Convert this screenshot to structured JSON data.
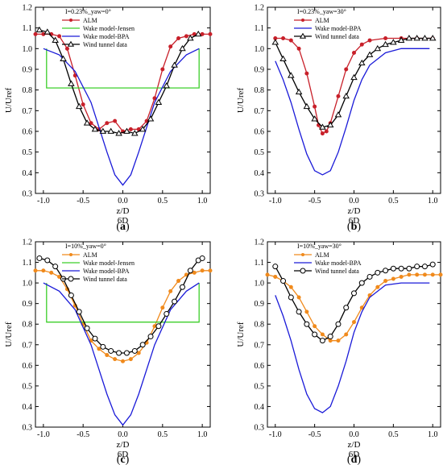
{
  "chart_data": [
    {
      "type": "line",
      "panel_label": {
        "open": "(",
        "letter": "a",
        "close": ")"
      },
      "annotation": "I=0.23%_yaw=0°",
      "xlabel": "z/D",
      "xlabel2": "6D",
      "ylabel": "U/Uref",
      "xlim": [
        -1.1,
        1.1
      ],
      "ylim": [
        0.3,
        1.2
      ],
      "xticks": [
        "-1.0",
        "-0.5",
        "0.0",
        "0.5",
        "1.0"
      ],
      "yticks": [
        "0.3",
        "0.4",
        "0.5",
        "0.6",
        "0.7",
        "0.8",
        "0.9",
        "1.0",
        "1.1",
        "1.2"
      ],
      "legend_position": "top-left",
      "series": [
        {
          "name": "ALM",
          "color": "#c8202a",
          "marker": "dot",
          "x": [
            -1.1,
            -1.0,
            -0.9,
            -0.8,
            -0.7,
            -0.6,
            -0.5,
            -0.4,
            -0.3,
            -0.2,
            -0.1,
            0.0,
            0.1,
            0.2,
            0.3,
            0.4,
            0.5,
            0.6,
            0.7,
            0.8,
            0.9,
            1.0,
            1.1
          ],
          "y": [
            1.07,
            1.07,
            1.07,
            1.06,
            1.0,
            0.87,
            0.73,
            0.64,
            0.61,
            0.64,
            0.65,
            0.6,
            0.61,
            0.61,
            0.65,
            0.76,
            0.9,
            1.01,
            1.05,
            1.06,
            1.07,
            1.07,
            1.07
          ]
        },
        {
          "name": "Wake model-Jensen",
          "color": "#3ccf2a",
          "marker": "none",
          "x": [
            -0.96,
            -0.96,
            0.96,
            0.96
          ],
          "y": [
            1.0,
            0.81,
            0.81,
            1.0
          ]
        },
        {
          "name": "Wake model-BPA",
          "color": "#1a1ad8",
          "marker": "none",
          "x": [
            -1.0,
            -0.8,
            -0.6,
            -0.4,
            -0.2,
            -0.1,
            0.0,
            0.1,
            0.2,
            0.4,
            0.6,
            0.8,
            0.96
          ],
          "y": [
            1.0,
            0.97,
            0.89,
            0.74,
            0.5,
            0.39,
            0.34,
            0.39,
            0.5,
            0.74,
            0.89,
            0.97,
            1.0
          ]
        },
        {
          "name": "Wind tunnel data",
          "color": "#000000",
          "marker": "triangle",
          "x": [
            -1.05,
            -0.95,
            -0.85,
            -0.75,
            -0.65,
            -0.55,
            -0.45,
            -0.35,
            -0.25,
            -0.15,
            -0.05,
            0.05,
            0.15,
            0.25,
            0.35,
            0.45,
            0.55,
            0.65,
            0.75,
            0.85,
            0.95
          ],
          "y": [
            1.09,
            1.08,
            1.04,
            0.95,
            0.83,
            0.72,
            0.64,
            0.61,
            0.6,
            0.6,
            0.59,
            0.6,
            0.59,
            0.61,
            0.66,
            0.74,
            0.82,
            0.92,
            1.0,
            1.05,
            1.07
          ]
        }
      ]
    },
    {
      "type": "line",
      "panel_label": {
        "open": "(",
        "letter": "b",
        "close": ")"
      },
      "annotation": "I=0.23%_yaw=30°",
      "xlabel": "z/D",
      "xlabel2": "6D",
      "ylabel": "U/Uref",
      "xlim": [
        -1.1,
        1.1
      ],
      "ylim": [
        0.3,
        1.2
      ],
      "xticks": [
        "-1.0",
        "-0.5",
        "0.0",
        "0.5",
        "1.0"
      ],
      "yticks": [
        "0.3",
        "0.4",
        "0.5",
        "0.6",
        "0.7",
        "0.8",
        "0.9",
        "1.0",
        "1.1",
        "1.2"
      ],
      "legend_position": "top-left",
      "series": [
        {
          "name": "ALM",
          "color": "#c8202a",
          "marker": "dot",
          "x": [
            -1.0,
            -0.9,
            -0.8,
            -0.7,
            -0.6,
            -0.5,
            -0.45,
            -0.4,
            -0.35,
            -0.3,
            -0.2,
            -0.1,
            0.0,
            0.1,
            0.2,
            0.4,
            0.6,
            0.8,
            1.0
          ],
          "y": [
            1.05,
            1.05,
            1.04,
            1.0,
            0.88,
            0.72,
            0.63,
            0.59,
            0.6,
            0.64,
            0.77,
            0.9,
            0.98,
            1.02,
            1.04,
            1.05,
            1.05,
            1.05,
            1.05
          ]
        },
        {
          "name": "Wake model-BPA",
          "color": "#1a1ad8",
          "marker": "none",
          "x": [
            -1.0,
            -0.9,
            -0.8,
            -0.7,
            -0.6,
            -0.5,
            -0.4,
            -0.3,
            -0.2,
            -0.1,
            0.0,
            0.1,
            0.2,
            0.4,
            0.6,
            0.8,
            0.96
          ],
          "y": [
            0.94,
            0.85,
            0.74,
            0.61,
            0.49,
            0.41,
            0.39,
            0.41,
            0.5,
            0.62,
            0.75,
            0.85,
            0.92,
            0.98,
            1.0,
            1.0,
            1.0
          ]
        },
        {
          "name": "Wind tunnel data",
          "color": "#000000",
          "marker": "triangle",
          "x": [
            -1.0,
            -0.9,
            -0.8,
            -0.7,
            -0.6,
            -0.5,
            -0.4,
            -0.3,
            -0.2,
            -0.1,
            0.0,
            0.1,
            0.2,
            0.3,
            0.4,
            0.5,
            0.6,
            0.7,
            0.8,
            0.9,
            1.0
          ],
          "y": [
            1.03,
            0.95,
            0.87,
            0.79,
            0.72,
            0.66,
            0.62,
            0.63,
            0.68,
            0.77,
            0.86,
            0.93,
            0.97,
            1.0,
            1.02,
            1.03,
            1.04,
            1.05,
            1.05,
            1.05,
            1.05
          ]
        }
      ]
    },
    {
      "type": "line",
      "panel_label": {
        "open": "(",
        "letter": "c",
        "close": ")"
      },
      "annotation": "I=10%_yaw=0°",
      "xlabel": "z/D",
      "xlabel2": "6D",
      "ylabel": "U/Uref",
      "xlim": [
        -1.1,
        1.1
      ],
      "ylim": [
        0.3,
        1.2
      ],
      "xticks": [
        "-1.0",
        "-0.5",
        "0.0",
        "0.5",
        "1.0"
      ],
      "yticks": [
        "0.3",
        "0.4",
        "0.5",
        "0.6",
        "0.7",
        "0.8",
        "0.9",
        "1.0",
        "1.1",
        "1.2"
      ],
      "legend_position": "top-left",
      "series": [
        {
          "name": "ALM",
          "color": "#f08a1c",
          "marker": "dot",
          "x": [
            -1.1,
            -1.0,
            -0.9,
            -0.8,
            -0.7,
            -0.6,
            -0.5,
            -0.4,
            -0.3,
            -0.2,
            -0.1,
            0.0,
            0.1,
            0.2,
            0.3,
            0.4,
            0.5,
            0.6,
            0.7,
            0.8,
            0.9,
            1.0,
            1.1
          ],
          "y": [
            1.06,
            1.06,
            1.05,
            1.03,
            0.97,
            0.89,
            0.8,
            0.72,
            0.68,
            0.65,
            0.63,
            0.62,
            0.63,
            0.66,
            0.71,
            0.79,
            0.88,
            0.96,
            1.01,
            1.04,
            1.05,
            1.06,
            1.06
          ]
        },
        {
          "name": "Wake model-Jensen",
          "color": "#3ccf2a",
          "marker": "none",
          "x": [
            -0.96,
            -0.96,
            0.96,
            0.96
          ],
          "y": [
            1.0,
            0.81,
            0.81,
            1.0
          ]
        },
        {
          "name": "Wake model-BPA",
          "color": "#1a1ad8",
          "marker": "none",
          "x": [
            -1.0,
            -0.8,
            -0.6,
            -0.4,
            -0.2,
            -0.1,
            0.0,
            0.1,
            0.2,
            0.4,
            0.6,
            0.8,
            0.96
          ],
          "y": [
            1.0,
            0.96,
            0.87,
            0.7,
            0.46,
            0.36,
            0.31,
            0.36,
            0.46,
            0.7,
            0.87,
            0.96,
            1.0
          ]
        },
        {
          "name": "Wind tunnel data",
          "color": "#000000",
          "marker": "circle",
          "x": [
            -1.05,
            -0.95,
            -0.85,
            -0.75,
            -0.65,
            -0.55,
            -0.45,
            -0.35,
            -0.25,
            -0.15,
            -0.05,
            0.05,
            0.15,
            0.25,
            0.35,
            0.45,
            0.55,
            0.65,
            0.75,
            0.85,
            0.95,
            1.0
          ],
          "y": [
            1.12,
            1.11,
            1.08,
            1.02,
            0.94,
            0.86,
            0.78,
            0.73,
            0.69,
            0.67,
            0.66,
            0.66,
            0.67,
            0.7,
            0.74,
            0.79,
            0.85,
            0.91,
            0.98,
            1.06,
            1.11,
            1.12
          ]
        }
      ]
    },
    {
      "type": "line",
      "panel_label": {
        "open": "(",
        "letter": "d",
        "close": ")"
      },
      "annotation": "I=10%_yaw=30°",
      "xlabel": "z/D",
      "xlabel2": "6D",
      "ylabel": "U/Uref",
      "xlim": [
        -1.1,
        1.1
      ],
      "ylim": [
        0.3,
        1.2
      ],
      "xticks": [
        "-1.0",
        "-0.5",
        "0.0",
        "0.5",
        "1.0"
      ],
      "yticks": [
        "0.3",
        "0.4",
        "0.5",
        "0.6",
        "0.7",
        "0.8",
        "0.9",
        "1.0",
        "1.1",
        "1.2"
      ],
      "legend_position": "top-left",
      "series": [
        {
          "name": "ALM",
          "color": "#f08a1c",
          "marker": "dot",
          "x": [
            -1.1,
            -1.0,
            -0.9,
            -0.8,
            -0.7,
            -0.6,
            -0.5,
            -0.4,
            -0.3,
            -0.2,
            -0.1,
            0.0,
            0.1,
            0.2,
            0.3,
            0.4,
            0.5,
            0.6,
            0.7,
            0.8,
            0.9,
            1.0,
            1.1
          ],
          "y": [
            1.04,
            1.03,
            1.01,
            0.98,
            0.93,
            0.86,
            0.79,
            0.75,
            0.72,
            0.72,
            0.75,
            0.81,
            0.88,
            0.94,
            0.98,
            1.01,
            1.02,
            1.03,
            1.04,
            1.04,
            1.04,
            1.04,
            1.04
          ]
        },
        {
          "name": "Wake model-BPA",
          "color": "#1a1ad8",
          "marker": "none",
          "x": [
            -1.0,
            -0.9,
            -0.8,
            -0.7,
            -0.6,
            -0.5,
            -0.4,
            -0.3,
            -0.2,
            -0.1,
            0.0,
            0.1,
            0.2,
            0.4,
            0.6,
            0.8,
            0.96
          ],
          "y": [
            0.94,
            0.84,
            0.72,
            0.58,
            0.46,
            0.39,
            0.37,
            0.4,
            0.5,
            0.62,
            0.76,
            0.86,
            0.93,
            0.99,
            1.0,
            1.0,
            1.0
          ]
        },
        {
          "name": "Wind tunnel data",
          "color": "#000000",
          "marker": "circle",
          "x": [
            -1.0,
            -0.9,
            -0.8,
            -0.7,
            -0.6,
            -0.5,
            -0.4,
            -0.3,
            -0.2,
            -0.1,
            0.0,
            0.1,
            0.2,
            0.3,
            0.4,
            0.5,
            0.6,
            0.7,
            0.8,
            0.9,
            1.0
          ],
          "y": [
            1.08,
            1.01,
            0.93,
            0.86,
            0.8,
            0.75,
            0.72,
            0.74,
            0.8,
            0.88,
            0.95,
            1.0,
            1.03,
            1.05,
            1.06,
            1.07,
            1.07,
            1.07,
            1.08,
            1.08,
            1.09
          ]
        }
      ]
    }
  ]
}
